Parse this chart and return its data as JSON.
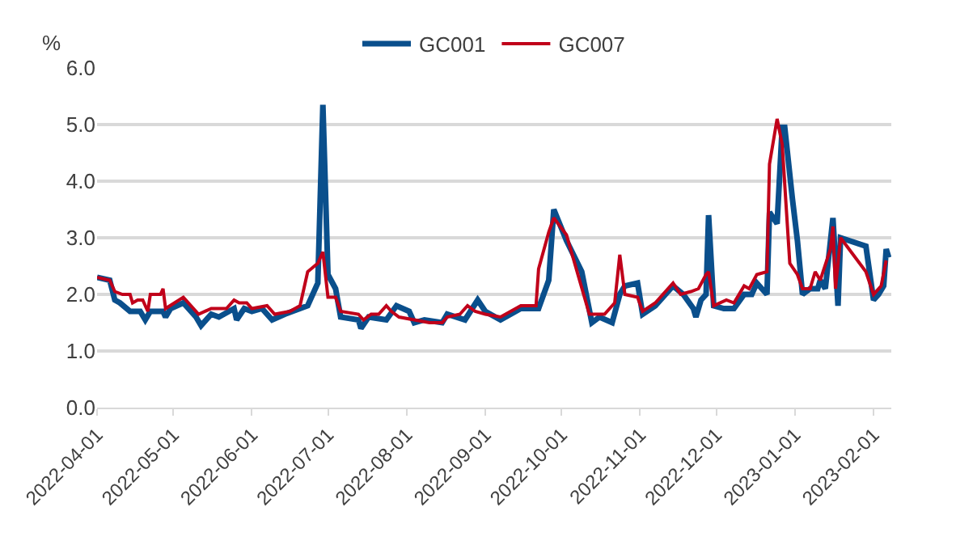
{
  "chart_data": {
    "type": "line",
    "ylabel": "%",
    "legend": "top",
    "grid": "y",
    "marker": "none",
    "line_style": "solid",
    "xlim": [
      "2022-04-01",
      "2023-02-08"
    ],
    "xticks": [
      {
        "value": "2022-04-01",
        "label": "2022-04-01"
      },
      {
        "value": "2022-05-01",
        "label": "2022-05-01"
      },
      {
        "value": "2022-06-01",
        "label": "2022-06-01"
      },
      {
        "value": "2022-07-01",
        "label": "2022-07-01"
      },
      {
        "value": "2022-08-01",
        "label": "2022-08-01"
      },
      {
        "value": "2022-09-01",
        "label": "2022-09-01"
      },
      {
        "value": "2022-10-01",
        "label": "2022-10-01"
      },
      {
        "value": "2022-11-01",
        "label": "2022-11-01"
      },
      {
        "value": "2022-12-01",
        "label": "2022-12-01"
      },
      {
        "value": "2023-01-01",
        "label": "2023-01-01"
      },
      {
        "value": "2023-02-01",
        "label": "2023-02-01"
      }
    ],
    "ylim": [
      0,
      6
    ],
    "yticks": [
      {
        "value": 0,
        "label": "0.0"
      },
      {
        "value": 1,
        "label": "1.0"
      },
      {
        "value": 2,
        "label": "2.0"
      },
      {
        "value": 3,
        "label": "3.0"
      },
      {
        "value": 4,
        "label": "4.0"
      },
      {
        "value": 5,
        "label": "5.0"
      },
      {
        "value": 6,
        "label": "6.0"
      }
    ],
    "series": [
      {
        "name": "GC001",
        "color": "#0a4f8c",
        "x": [
          "2022-04-01",
          "2022-04-06",
          "2022-04-08",
          "2022-04-10",
          "2022-04-14",
          "2022-04-18",
          "2022-04-20",
          "2022-04-22",
          "2022-04-27",
          "2022-04-28",
          "2022-04-30",
          "2022-05-05",
          "2022-05-10",
          "2022-05-12",
          "2022-05-16",
          "2022-05-19",
          "2022-05-25",
          "2022-05-26",
          "2022-05-29",
          "2022-06-01",
          "2022-06-05",
          "2022-06-09",
          "2022-06-14",
          "2022-06-20",
          "2022-06-23",
          "2022-06-27",
          "2022-06-29",
          "2022-07-01",
          "2022-07-04",
          "2022-07-06",
          "2022-07-13",
          "2022-07-14",
          "2022-07-17",
          "2022-07-24",
          "2022-07-28",
          "2022-08-02",
          "2022-08-04",
          "2022-08-08",
          "2022-08-15",
          "2022-08-17",
          "2022-08-24",
          "2022-08-29",
          "2022-09-01",
          "2022-09-07",
          "2022-09-15",
          "2022-09-22",
          "2022-09-26",
          "2022-09-28",
          "2022-10-03",
          "2022-10-09",
          "2022-10-13",
          "2022-10-16",
          "2022-10-21",
          "2022-10-24",
          "2022-10-26",
          "2022-10-31",
          "2022-11-02",
          "2022-11-07",
          "2022-11-14",
          "2022-11-18",
          "2022-11-22",
          "2022-11-23",
          "2022-11-25",
          "2022-11-27",
          "2022-11-28",
          "2022-11-30",
          "2022-12-04",
          "2022-12-08",
          "2022-12-12",
          "2022-12-15",
          "2022-12-17",
          "2022-12-21",
          "2022-12-22",
          "2022-12-25",
          "2022-12-27",
          "2022-12-28",
          "2022-12-31",
          "2023-01-02",
          "2023-01-04",
          "2023-01-07",
          "2023-01-10",
          "2023-01-11",
          "2023-01-13",
          "2023-01-16",
          "2023-01-18",
          "2023-01-19",
          "2023-01-29",
          "2023-02-01",
          "2023-02-03",
          "2023-02-05",
          "2023-02-06",
          "2023-02-07"
        ],
        "values": [
          2.3,
          2.25,
          1.9,
          1.85,
          1.7,
          1.7,
          1.55,
          1.7,
          1.7,
          1.6,
          1.75,
          1.85,
          1.6,
          1.45,
          1.65,
          1.6,
          1.75,
          1.55,
          1.75,
          1.7,
          1.75,
          1.55,
          1.65,
          1.75,
          1.8,
          2.2,
          5.35,
          2.35,
          2.1,
          1.6,
          1.55,
          1.4,
          1.6,
          1.55,
          1.8,
          1.7,
          1.5,
          1.55,
          1.5,
          1.65,
          1.55,
          1.9,
          1.7,
          1.55,
          1.75,
          1.75,
          2.25,
          3.5,
          2.95,
          2.4,
          1.5,
          1.6,
          1.5,
          2.0,
          2.15,
          2.2,
          1.65,
          1.8,
          2.15,
          2.0,
          1.75,
          1.6,
          1.9,
          2.0,
          3.4,
          1.8,
          1.75,
          1.75,
          2.0,
          2.0,
          2.2,
          2.0,
          3.45,
          3.25,
          4.95,
          4.95,
          3.7,
          2.95,
          2.0,
          2.1,
          2.1,
          2.25,
          2.1,
          3.35,
          1.8,
          3.0,
          2.85,
          1.9,
          2.0,
          2.15,
          2.8,
          2.65
        ]
      },
      {
        "name": "GC007",
        "color": "#c0001a",
        "x": [
          "2022-04-01",
          "2022-04-06",
          "2022-04-08",
          "2022-04-11",
          "2022-04-14",
          "2022-04-15",
          "2022-04-17",
          "2022-04-19",
          "2022-04-21",
          "2022-04-22",
          "2022-04-26",
          "2022-04-27",
          "2022-04-28",
          "2022-05-05",
          "2022-05-11",
          "2022-05-16",
          "2022-05-22",
          "2022-05-25",
          "2022-05-27",
          "2022-05-30",
          "2022-06-01",
          "2022-06-07",
          "2022-06-10",
          "2022-06-16",
          "2022-06-20",
          "2022-06-23",
          "2022-06-27",
          "2022-06-29",
          "2022-07-01",
          "2022-07-04",
          "2022-07-06",
          "2022-07-13",
          "2022-07-15",
          "2022-07-18",
          "2022-07-21",
          "2022-07-24",
          "2022-07-26",
          "2022-07-29",
          "2022-08-04",
          "2022-08-10",
          "2022-08-15",
          "2022-08-17",
          "2022-08-22",
          "2022-08-25",
          "2022-08-28",
          "2022-09-01",
          "2022-09-07",
          "2022-09-15",
          "2022-09-21",
          "2022-09-22",
          "2022-09-26",
          "2022-09-28",
          "2022-10-03",
          "2022-10-12",
          "2022-10-18",
          "2022-10-22",
          "2022-10-24",
          "2022-10-26",
          "2022-10-31",
          "2022-11-02",
          "2022-11-07",
          "2022-11-14",
          "2022-11-17",
          "2022-11-21",
          "2022-11-24",
          "2022-11-27",
          "2022-11-28",
          "2022-11-30",
          "2022-12-05",
          "2022-12-08",
          "2022-12-12",
          "2022-12-14",
          "2022-12-17",
          "2022-12-21",
          "2022-12-22",
          "2022-12-25",
          "2022-12-27",
          "2022-12-30",
          "2023-01-02",
          "2023-01-04",
          "2023-01-07",
          "2023-01-09",
          "2023-01-11",
          "2023-01-15",
          "2023-01-16",
          "2023-01-17",
          "2023-01-19",
          "2023-01-29",
          "2023-02-01",
          "2023-02-04",
          "2023-02-06"
        ],
        "values": [
          2.3,
          2.25,
          2.05,
          2.0,
          2.0,
          1.85,
          1.9,
          1.9,
          1.7,
          2.0,
          2.0,
          2.1,
          1.75,
          1.95,
          1.65,
          1.75,
          1.75,
          1.9,
          1.85,
          1.85,
          1.75,
          1.8,
          1.65,
          1.7,
          1.8,
          2.4,
          2.55,
          2.75,
          1.95,
          1.95,
          1.7,
          1.65,
          1.55,
          1.65,
          1.65,
          1.8,
          1.7,
          1.6,
          1.55,
          1.5,
          1.5,
          1.6,
          1.65,
          1.8,
          1.7,
          1.65,
          1.6,
          1.8,
          1.8,
          2.45,
          3.1,
          3.35,
          3.05,
          1.65,
          1.65,
          1.85,
          2.7,
          2.0,
          1.95,
          1.7,
          1.85,
          2.2,
          2.0,
          2.05,
          2.1,
          2.35,
          2.4,
          1.8,
          1.9,
          1.85,
          2.15,
          2.1,
          2.35,
          2.4,
          4.3,
          5.1,
          4.65,
          2.55,
          2.35,
          2.1,
          2.1,
          2.4,
          2.25,
          2.8,
          3.2,
          2.1,
          3.0,
          2.4,
          2.0,
          2.15,
          2.6
        ]
      }
    ]
  }
}
